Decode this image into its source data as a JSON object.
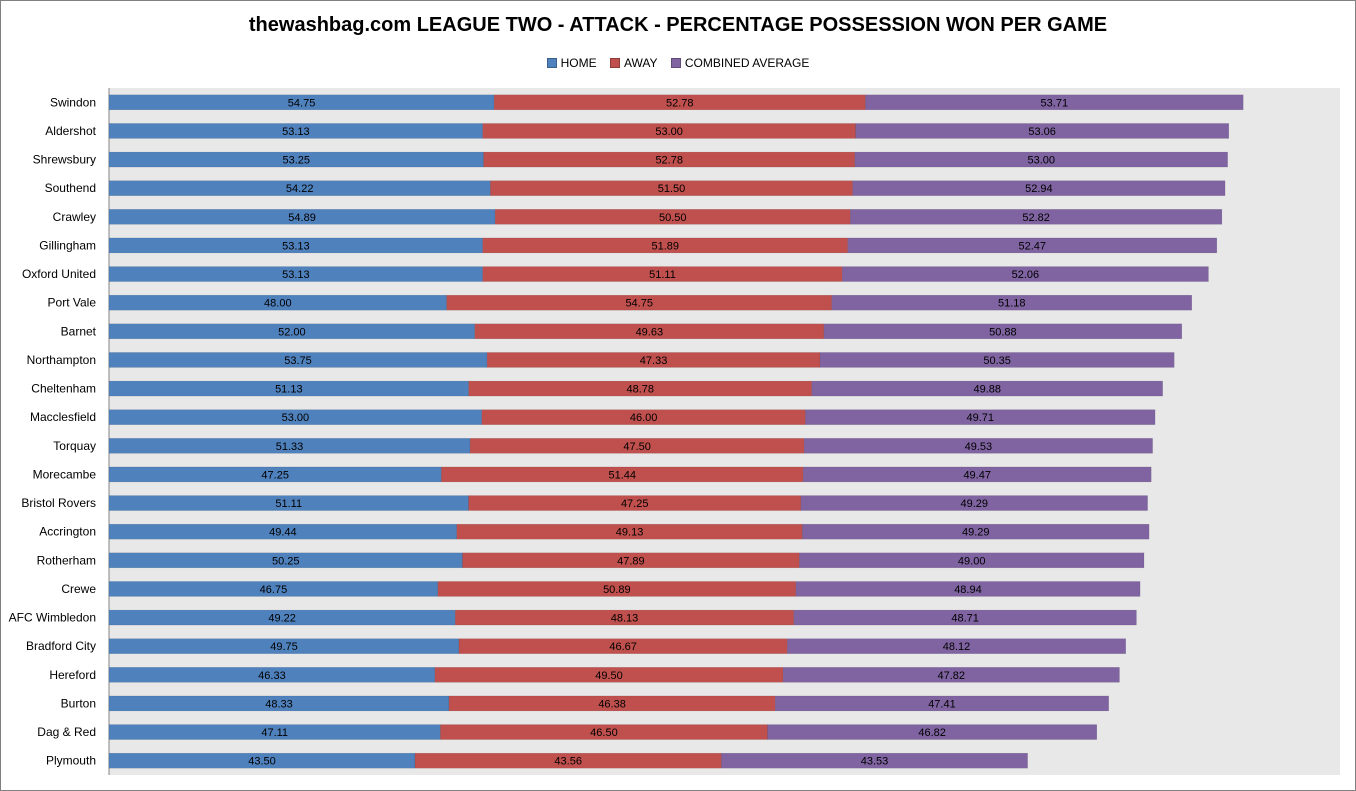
{
  "colors": {
    "home": "#4F81BD",
    "away": "#C0504D",
    "combined": "#8064A2",
    "plot_background": "#E8E8E8"
  },
  "chart_data": {
    "type": "bar",
    "orientation": "horizontal",
    "stacked": true,
    "title": "thewashbag.com LEAGUE TWO - ATTACK - PERCENTAGE POSSESSION WON PER GAME",
    "legend_position": "top",
    "xlabel": "",
    "ylabel": "",
    "gridlines": false,
    "xlim": [
      0,
      175
    ],
    "categories": [
      "Swindon",
      "Aldershot",
      "Shrewsbury",
      "Southend",
      "Crawley",
      "Gillingham",
      "Oxford United",
      "Port Vale",
      "Barnet",
      "Northampton",
      "Cheltenham",
      "Macclesfield",
      "Torquay",
      "Morecambe",
      "Bristol Rovers",
      "Accrington",
      "Rotherham",
      "Crewe",
      "AFC Wimbledon",
      "Bradford City",
      "Hereford",
      "Burton",
      "Dag & Red",
      "Plymouth"
    ],
    "series": [
      {
        "name": "HOME",
        "key": "home",
        "values": [
          "54.75",
          "53.13",
          "53.25",
          "54.22",
          "54.89",
          "53.13",
          "53.13",
          "48.00",
          "52.00",
          "53.75",
          "51.13",
          "53.00",
          "51.33",
          "47.25",
          "51.11",
          "49.44",
          "50.25",
          "46.75",
          "49.22",
          "49.75",
          "46.33",
          "48.33",
          "47.11",
          "43.50"
        ]
      },
      {
        "name": "AWAY",
        "key": "away",
        "values": [
          "52.78",
          "53.00",
          "52.78",
          "51.50",
          "50.50",
          "51.89",
          "51.11",
          "54.75",
          "49.63",
          "47.33",
          "48.78",
          "46.00",
          "47.50",
          "51.44",
          "47.25",
          "49.13",
          "47.89",
          "50.89",
          "48.13",
          "46.67",
          "49.50",
          "46.38",
          "46.50",
          "43.56"
        ]
      },
      {
        "name": "COMBINED AVERAGE",
        "key": "combined",
        "values": [
          "53.71",
          "53.06",
          "53.00",
          "52.94",
          "52.82",
          "52.47",
          "52.06",
          "51.18",
          "50.88",
          "50.35",
          "49.88",
          "49.71",
          "49.53",
          "49.47",
          "49.29",
          "49.29",
          "49.00",
          "48.94",
          "48.71",
          "48.12",
          "47.82",
          "47.41",
          "46.82",
          "43.53"
        ]
      }
    ]
  }
}
